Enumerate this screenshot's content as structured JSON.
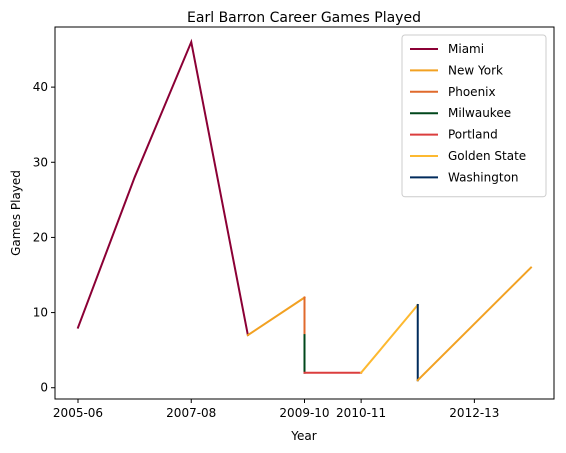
{
  "chart_data": {
    "type": "line",
    "title": "Earl Barron Career Games Played",
    "xlabel": "Year",
    "ylabel": "Games Played",
    "x_categories": [
      "2005-06",
      "2006-07",
      "2007-08",
      "2008-09",
      "2009-10",
      "2010-11",
      "2011-12",
      "2012-13",
      "2013-14"
    ],
    "xticks": [
      "2005-06",
      "2007-08",
      "2009-10",
      "2010-11",
      "2012-13"
    ],
    "ylim": [
      -1.5,
      48
    ],
    "yticks": [
      0,
      10,
      20,
      30,
      40
    ],
    "grid": false,
    "legend_position": "top-right",
    "series": [
      {
        "name": "Miami",
        "color": "#8B0035",
        "points": [
          [
            "2005-06",
            8
          ],
          [
            "2006-07",
            28
          ],
          [
            "2007-08",
            46
          ],
          [
            "2008-09",
            7
          ]
        ]
      },
      {
        "name": "New York",
        "color": "#F2A122",
        "points": [
          [
            "2008-09",
            7
          ],
          [
            "2009-10",
            12
          ]
        ]
      },
      {
        "name": "Phoenix",
        "color": "#E06A2C",
        "points": [
          [
            "2009-10",
            12
          ],
          [
            "2009-10",
            7
          ]
        ]
      },
      {
        "name": "Milwaukee",
        "color": "#00471B",
        "points": [
          [
            "2009-10",
            7
          ],
          [
            "2009-10",
            2
          ]
        ]
      },
      {
        "name": "Portland",
        "color": "#DB3E3E",
        "points": [
          [
            "2009-10",
            2
          ],
          [
            "2010-11",
            2
          ]
        ]
      },
      {
        "name": "Golden State",
        "color": "#FDB930",
        "points": [
          [
            "2010-11",
            2
          ],
          [
            "2011-12",
            11
          ]
        ]
      },
      {
        "name": "Washington",
        "color": "#002B5C",
        "points": [
          [
            "2011-12",
            11
          ],
          [
            "2011-12",
            1
          ]
        ]
      },
      {
        "name": "New York",
        "color": "#F2A122",
        "points": [
          [
            "2011-12",
            1
          ],
          [
            "2013-14",
            16
          ]
        ],
        "legend": false
      }
    ]
  }
}
